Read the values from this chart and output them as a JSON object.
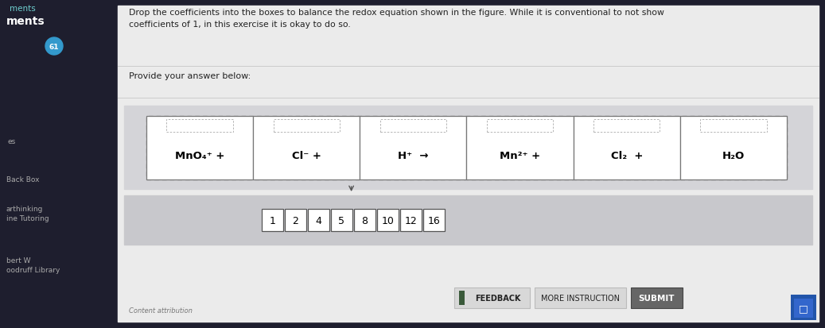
{
  "bg_dark_color": "#1e1e2e",
  "bg_main_color": "#e0e0e4",
  "bg_panel_color": "#cecece",
  "bg_eq_area_color": "#d4d4d8",
  "bg_coeff_area_color": "#c8c8cc",
  "title_line1": "Drop the coefficients into the boxes to balance the redox equation shown in the figure. While it is conventional to not show",
  "title_line2": "coefficients of 1, in this exercise it is okay to do so.",
  "provide_text": "Provide your answer below:",
  "eq_texts": [
    "MnO₄⁺ +",
    "Cl⁻ +",
    "H⁺  →",
    "Mn²⁺ +",
    "Cl₂  +",
    "H₂O"
  ],
  "coefficients": [
    "1",
    "2",
    "4",
    "5",
    "8",
    "10",
    "12",
    "16"
  ],
  "button_feedback": "FEEDBACK",
  "button_instruction": "MORE INSTRUCTION",
  "button_submit": "SUBMIT",
  "content_attr": "Content attribution",
  "sidebar_text1": "ments",
  "sidebar_text2": "ments",
  "sidebar_items": [
    "es",
    "Back Box",
    "arthinking",
    "ine Tutoring",
    "bert W",
    "oodruff Library"
  ]
}
